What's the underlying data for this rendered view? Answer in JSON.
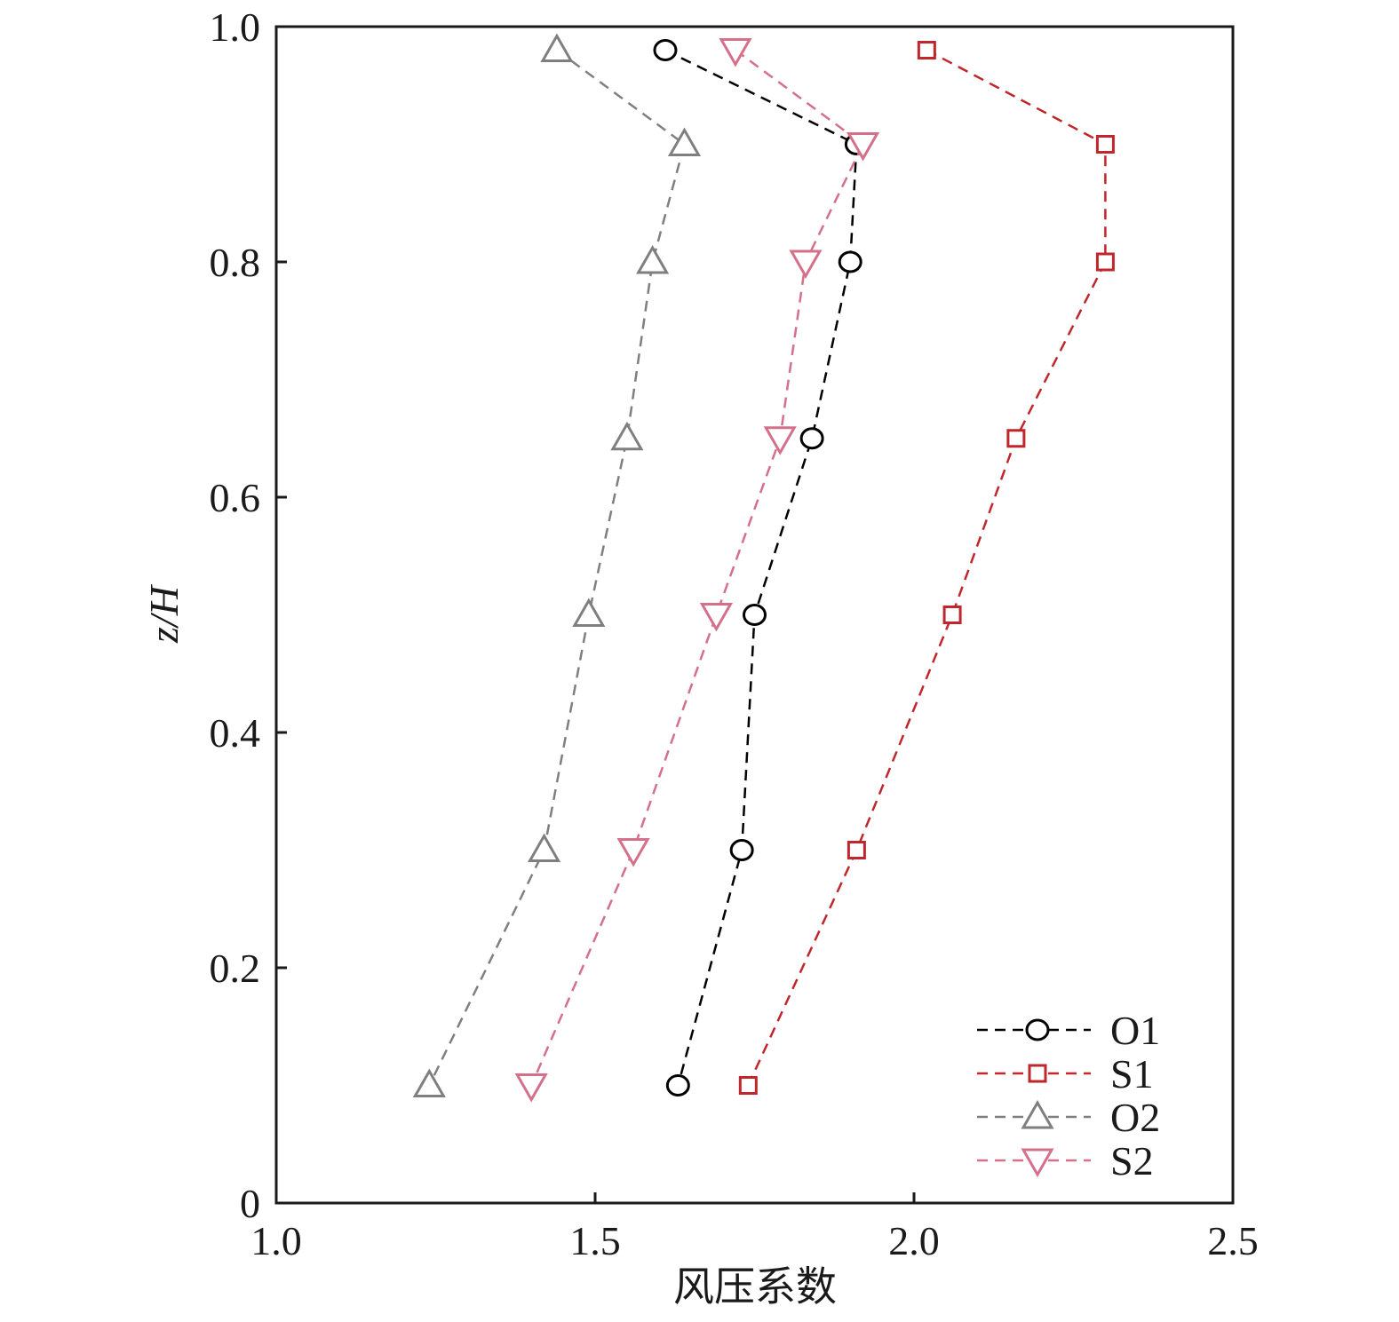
{
  "chart_data": {
    "type": "line",
    "xlabel": "风压系数",
    "ylabel": "z/H",
    "y": [
      0.98,
      0.9,
      0.8,
      0.65,
      0.5,
      0.3,
      0.1
    ],
    "series": [
      {
        "name": "O1",
        "color": "#000000",
        "marker": "circle",
        "values": [
          1.61,
          1.91,
          1.9,
          1.84,
          1.75,
          1.73,
          1.63
        ]
      },
      {
        "name": "S1",
        "color": "#c0272d",
        "marker": "square",
        "values": [
          2.02,
          2.3,
          2.3,
          2.16,
          2.06,
          1.91,
          1.74
        ]
      },
      {
        "name": "O2",
        "color": "#7f7f7f",
        "marker": "triangle-up",
        "values": [
          1.44,
          1.64,
          1.59,
          1.55,
          1.49,
          1.42,
          1.24
        ]
      },
      {
        "name": "S2",
        "color": "#d4708a",
        "marker": "triangle-down",
        "values": [
          1.72,
          1.92,
          1.83,
          1.79,
          1.69,
          1.56,
          1.4
        ]
      }
    ],
    "xlim": [
      1.0,
      2.5
    ],
    "xticks": [
      {
        "value": 1.0,
        "label": "1.0"
      },
      1.5,
      {
        "value": 2.0,
        "label": "2.0"
      },
      2.5
    ],
    "ylim": [
      0,
      1.0
    ],
    "yticks": [
      0,
      0.2,
      0.4,
      0.6,
      0.8,
      {
        "value": 1.0,
        "label": "1.0"
      }
    ],
    "legend": "lower right"
  }
}
